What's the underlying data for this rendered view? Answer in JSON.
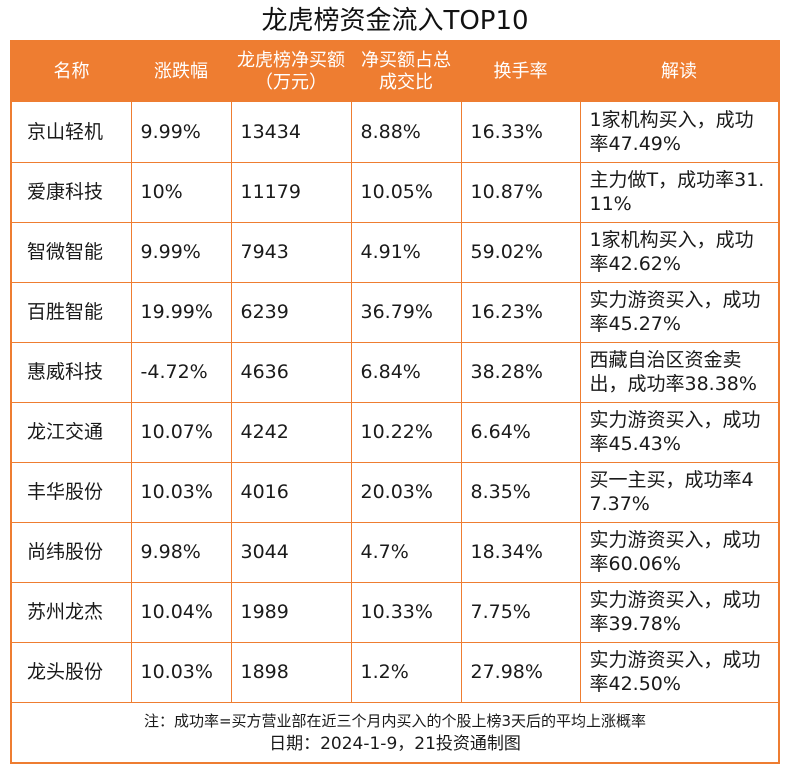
{
  "title": "龙虎榜资金流入TOP10",
  "table": {
    "headers": [
      "名称",
      "涨跌幅",
      "龙虎榜净买额（万元）",
      "净买额占总成交比",
      "换手率",
      "解读"
    ],
    "rows": [
      [
        "京山轻机",
        "9.99%",
        "13434",
        "8.88%",
        "16.33%",
        "1家机构买入，成功率47.49%"
      ],
      [
        "爱康科技",
        "10%",
        "11179",
        "10.05%",
        "10.87%",
        "主力做T，成功率31.11%"
      ],
      [
        "智微智能",
        "9.99%",
        "7943",
        "4.91%",
        "59.02%",
        "1家机构买入，成功率42.62%"
      ],
      [
        "百胜智能",
        "19.99%",
        "6239",
        "36.79%",
        "16.23%",
        "实力游资买入，成功率45.27%"
      ],
      [
        "惠威科技",
        "-4.72%",
        "4636",
        "6.84%",
        "38.28%",
        "西藏自治区资金卖出，成功率38.38%"
      ],
      [
        "龙江交通",
        "10.07%",
        "4242",
        "10.22%",
        "6.64%",
        "实力游资买入，成功率45.43%"
      ],
      [
        "丰华股份",
        "10.03%",
        "4016",
        "20.03%",
        "8.35%",
        "买一主买，成功率47.37%"
      ],
      [
        "尚纬股份",
        "9.98%",
        "3044",
        "4.7%",
        "18.34%",
        "实力游资买入，成功率60.06%"
      ],
      [
        "苏州龙杰",
        "10.04%",
        "1989",
        "10.33%",
        "7.75%",
        "实力游资买入，成功率39.78%"
      ],
      [
        "龙头股份",
        "10.03%",
        "1898",
        "1.2%",
        "27.98%",
        "实力游资买入，成功率42.50%"
      ]
    ]
  },
  "footer": {
    "note": "注：成功率=买方营业部在近三个月内买入的个股上榜3天后的平均上涨概率",
    "credit": "日期：2024-1-9，21投资通制图"
  },
  "colors": {
    "accent": "#ee7d31",
    "header_text": "#ffffff"
  }
}
